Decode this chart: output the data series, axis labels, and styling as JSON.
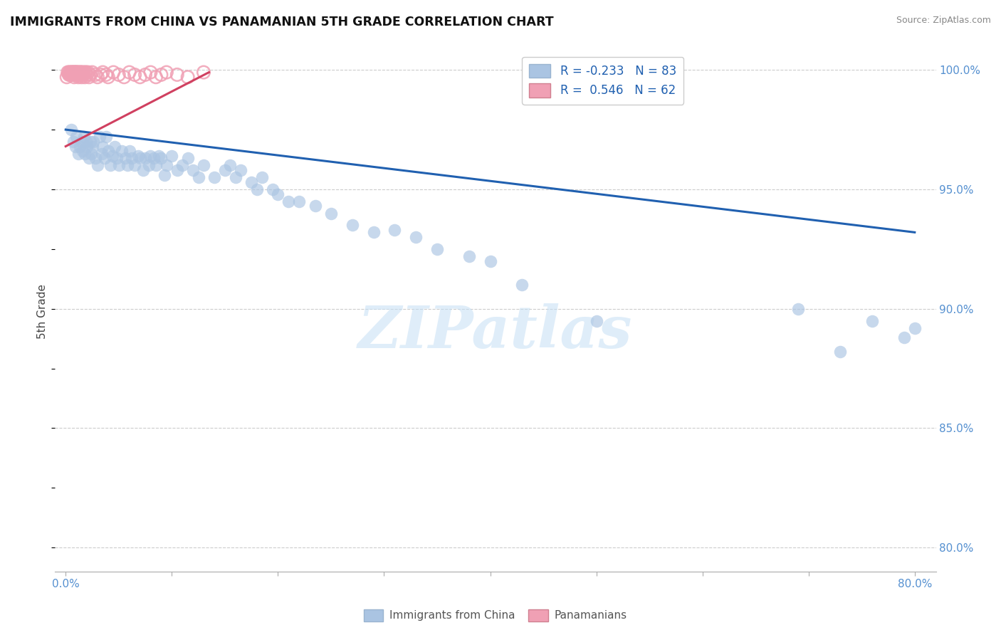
{
  "title": "IMMIGRANTS FROM CHINA VS PANAMANIAN 5TH GRADE CORRELATION CHART",
  "source": "Source: ZipAtlas.com",
  "ylabel": "5th Grade",
  "blue_color": "#aac4e2",
  "blue_edge_color": "#aac4e2",
  "pink_color": "#f0a0b4",
  "blue_line_color": "#2060b0",
  "pink_line_color": "#d04060",
  "legend_R_blue": "R = -0.233",
  "legend_N_blue": "N = 83",
  "legend_R_pink": "R =  0.546",
  "legend_N_pink": "N = 62",
  "legend_label_blue": "Immigrants from China",
  "legend_label_pink": "Panamanians",
  "watermark": "ZIPatlas",
  "title_color": "#111111",
  "axis_color": "#5590d0",
  "grid_color": "#cccccc",
  "blue_line_x": [
    0.0,
    0.8
  ],
  "blue_line_y": [
    0.975,
    0.932
  ],
  "pink_line_x": [
    0.0,
    0.135
  ],
  "pink_line_y": [
    0.968,
    0.999
  ],
  "xlim": [
    -0.01,
    0.82
  ],
  "ylim": [
    0.79,
    1.008
  ],
  "yticks": [
    0.8,
    0.85,
    0.9,
    0.95,
    1.0
  ],
  "ytick_labels": [
    "80.0%",
    "85.0%",
    "90.0%",
    "95.0%",
    "100.0%"
  ],
  "xticks": [
    0.0,
    0.1,
    0.2,
    0.3,
    0.4,
    0.5,
    0.6,
    0.7,
    0.8
  ],
  "xtick_labels": [
    "0.0%",
    "",
    "",
    "",
    "",
    "",
    "",
    "",
    "80.0%"
  ],
  "blue_x": [
    0.005,
    0.007,
    0.009,
    0.01,
    0.012,
    0.013,
    0.015,
    0.016,
    0.017,
    0.018,
    0.019,
    0.02,
    0.022,
    0.023,
    0.024,
    0.025,
    0.026,
    0.028,
    0.03,
    0.032,
    0.034,
    0.035,
    0.037,
    0.038,
    0.04,
    0.042,
    0.044,
    0.046,
    0.048,
    0.05,
    0.053,
    0.056,
    0.058,
    0.06,
    0.062,
    0.065,
    0.068,
    0.07,
    0.073,
    0.075,
    0.078,
    0.08,
    0.083,
    0.085,
    0.088,
    0.09,
    0.093,
    0.095,
    0.1,
    0.105,
    0.11,
    0.115,
    0.12,
    0.125,
    0.13,
    0.14,
    0.15,
    0.155,
    0.16,
    0.165,
    0.175,
    0.18,
    0.185,
    0.195,
    0.2,
    0.21,
    0.22,
    0.235,
    0.25,
    0.27,
    0.29,
    0.31,
    0.33,
    0.35,
    0.38,
    0.4,
    0.43,
    0.5,
    0.69,
    0.73,
    0.76,
    0.79,
    0.8
  ],
  "blue_y": [
    0.975,
    0.97,
    0.968,
    0.972,
    0.965,
    0.968,
    0.97,
    0.966,
    0.972,
    0.965,
    0.97,
    0.968,
    0.963,
    0.97,
    0.965,
    0.968,
    0.97,
    0.963,
    0.96,
    0.972,
    0.965,
    0.968,
    0.963,
    0.972,
    0.966,
    0.96,
    0.964,
    0.968,
    0.963,
    0.96,
    0.966,
    0.963,
    0.96,
    0.966,
    0.963,
    0.96,
    0.964,
    0.963,
    0.958,
    0.963,
    0.96,
    0.964,
    0.963,
    0.96,
    0.964,
    0.963,
    0.956,
    0.96,
    0.964,
    0.958,
    0.96,
    0.963,
    0.958,
    0.955,
    0.96,
    0.955,
    0.958,
    0.96,
    0.955,
    0.958,
    0.953,
    0.95,
    0.955,
    0.95,
    0.948,
    0.945,
    0.945,
    0.943,
    0.94,
    0.935,
    0.932,
    0.933,
    0.93,
    0.925,
    0.922,
    0.92,
    0.91,
    0.895,
    0.9,
    0.882,
    0.895,
    0.888,
    0.892
  ],
  "pink_x": [
    0.001,
    0.002,
    0.003,
    0.003,
    0.004,
    0.004,
    0.005,
    0.005,
    0.006,
    0.006,
    0.006,
    0.007,
    0.007,
    0.008,
    0.008,
    0.008,
    0.009,
    0.009,
    0.01,
    0.01,
    0.01,
    0.011,
    0.011,
    0.012,
    0.012,
    0.013,
    0.013,
    0.014,
    0.014,
    0.015,
    0.015,
    0.016,
    0.016,
    0.017,
    0.018,
    0.018,
    0.019,
    0.02,
    0.021,
    0.022,
    0.023,
    0.025,
    0.028,
    0.03,
    0.033,
    0.035,
    0.038,
    0.04,
    0.045,
    0.05,
    0.055,
    0.06,
    0.065,
    0.07,
    0.075,
    0.08,
    0.085,
    0.09,
    0.095,
    0.105,
    0.115,
    0.13
  ],
  "pink_y": [
    0.997,
    0.999,
    0.998,
    0.999,
    0.998,
    0.999,
    0.998,
    0.999,
    0.998,
    0.999,
    0.999,
    0.998,
    0.999,
    0.997,
    0.999,
    0.999,
    0.998,
    0.999,
    0.998,
    0.999,
    0.999,
    0.998,
    0.999,
    0.997,
    0.999,
    0.998,
    0.999,
    0.998,
    0.999,
    0.997,
    0.999,
    0.998,
    0.999,
    0.998,
    0.999,
    0.997,
    0.999,
    0.998,
    0.999,
    0.997,
    0.998,
    0.999,
    0.998,
    0.997,
    0.998,
    0.999,
    0.998,
    0.997,
    0.999,
    0.998,
    0.997,
    0.999,
    0.998,
    0.997,
    0.998,
    0.999,
    0.997,
    0.998,
    0.999,
    0.998,
    0.997,
    0.999
  ]
}
